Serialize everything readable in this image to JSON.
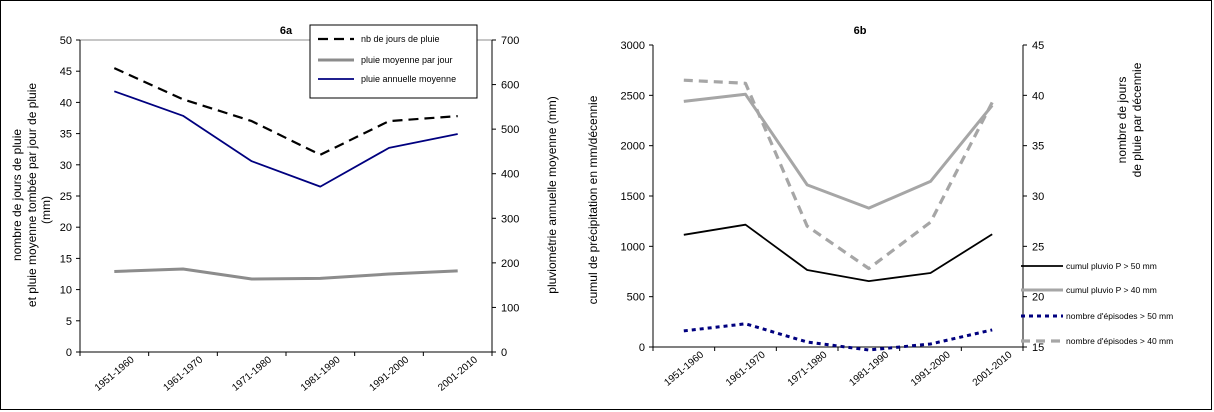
{
  "chart_data": [
    {
      "type": "line",
      "title": "6a",
      "categories": [
        "1951-1960",
        "1961-1970",
        "1971-1980",
        "1981-1990",
        "1991-2000",
        "2001-2010"
      ],
      "ylabel": [
        "nombre de jours de pluie",
        "et pluie moyenne tombée par jour de pluie",
        "(mm)"
      ],
      "y2label": "pluviométrie annuelle moyenne (mm)",
      "ylim": [
        0,
        50
      ],
      "y2lim": [
        0,
        700
      ],
      "yticks": [
        0,
        5,
        10,
        15,
        20,
        25,
        30,
        35,
        40,
        45,
        50
      ],
      "y2ticks": [
        0,
        100,
        200,
        300,
        400,
        500,
        600,
        700
      ],
      "legend_position": "top-right",
      "series": [
        {
          "name": "nb de jours de pluie",
          "axis": "left",
          "color": "#000000",
          "dash": "10,6",
          "width": 2.2,
          "values": [
            45.5,
            40.5,
            37.0,
            31.6,
            37.0,
            37.8
          ]
        },
        {
          "name": "pluie moyenne par jour",
          "axis": "left",
          "color": "#8c8c8c",
          "dash": "",
          "width": 3,
          "values": [
            12.9,
            13.3,
            11.7,
            11.8,
            12.5,
            13.0
          ]
        },
        {
          "name": "pluie annuelle moyenne",
          "axis": "right",
          "color": "#00007f",
          "dash": "",
          "width": 1.8,
          "values": [
            585,
            530,
            428,
            371,
            458,
            489
          ]
        }
      ]
    },
    {
      "type": "line",
      "title": "6b",
      "categories": [
        "1951-1960",
        "1961-1970",
        "1971-1980",
        "1981-1990",
        "1991-2000",
        "2001-2010"
      ],
      "ylabel": "cumul de précipitation en mm/décennie",
      "y2label": [
        "nombre de jours",
        "de pluie par décennie"
      ],
      "ylim": [
        0,
        3000
      ],
      "y2lim": [
        15,
        45
      ],
      "yticks": [
        0,
        500,
        1000,
        1500,
        2000,
        2500,
        3000
      ],
      "y2ticks": [
        15,
        20,
        25,
        30,
        35,
        40,
        45
      ],
      "legend_position": "right",
      "series": [
        {
          "name": "cumul pluvio P > 50 mm",
          "axis": "left",
          "color": "#000000",
          "dash": "",
          "width": 1.8,
          "values": [
            1115,
            1215,
            765,
            655,
            735,
            1120
          ]
        },
        {
          "name": "cumul pluvio P > 40 mm",
          "axis": "left",
          "color": "#a6a6a6",
          "dash": "",
          "width": 3,
          "values": [
            2440,
            2510,
            1610,
            1380,
            1645,
            2400
          ]
        },
        {
          "name": "nombre d'épisodes > 50 mm",
          "axis": "right",
          "color": "#00007f",
          "dash": "4,4",
          "width": 3,
          "values": [
            16.6,
            17.3,
            15.5,
            14.7,
            15.3,
            16.7
          ]
        },
        {
          "name": "nombre d'épisodes > 40 mm",
          "axis": "right",
          "color": "#a6a6a6",
          "dash": "9,6",
          "width": 3.2,
          "values": [
            41.5,
            41.2,
            27.0,
            22.8,
            27.4,
            39.3
          ]
        }
      ]
    }
  ]
}
